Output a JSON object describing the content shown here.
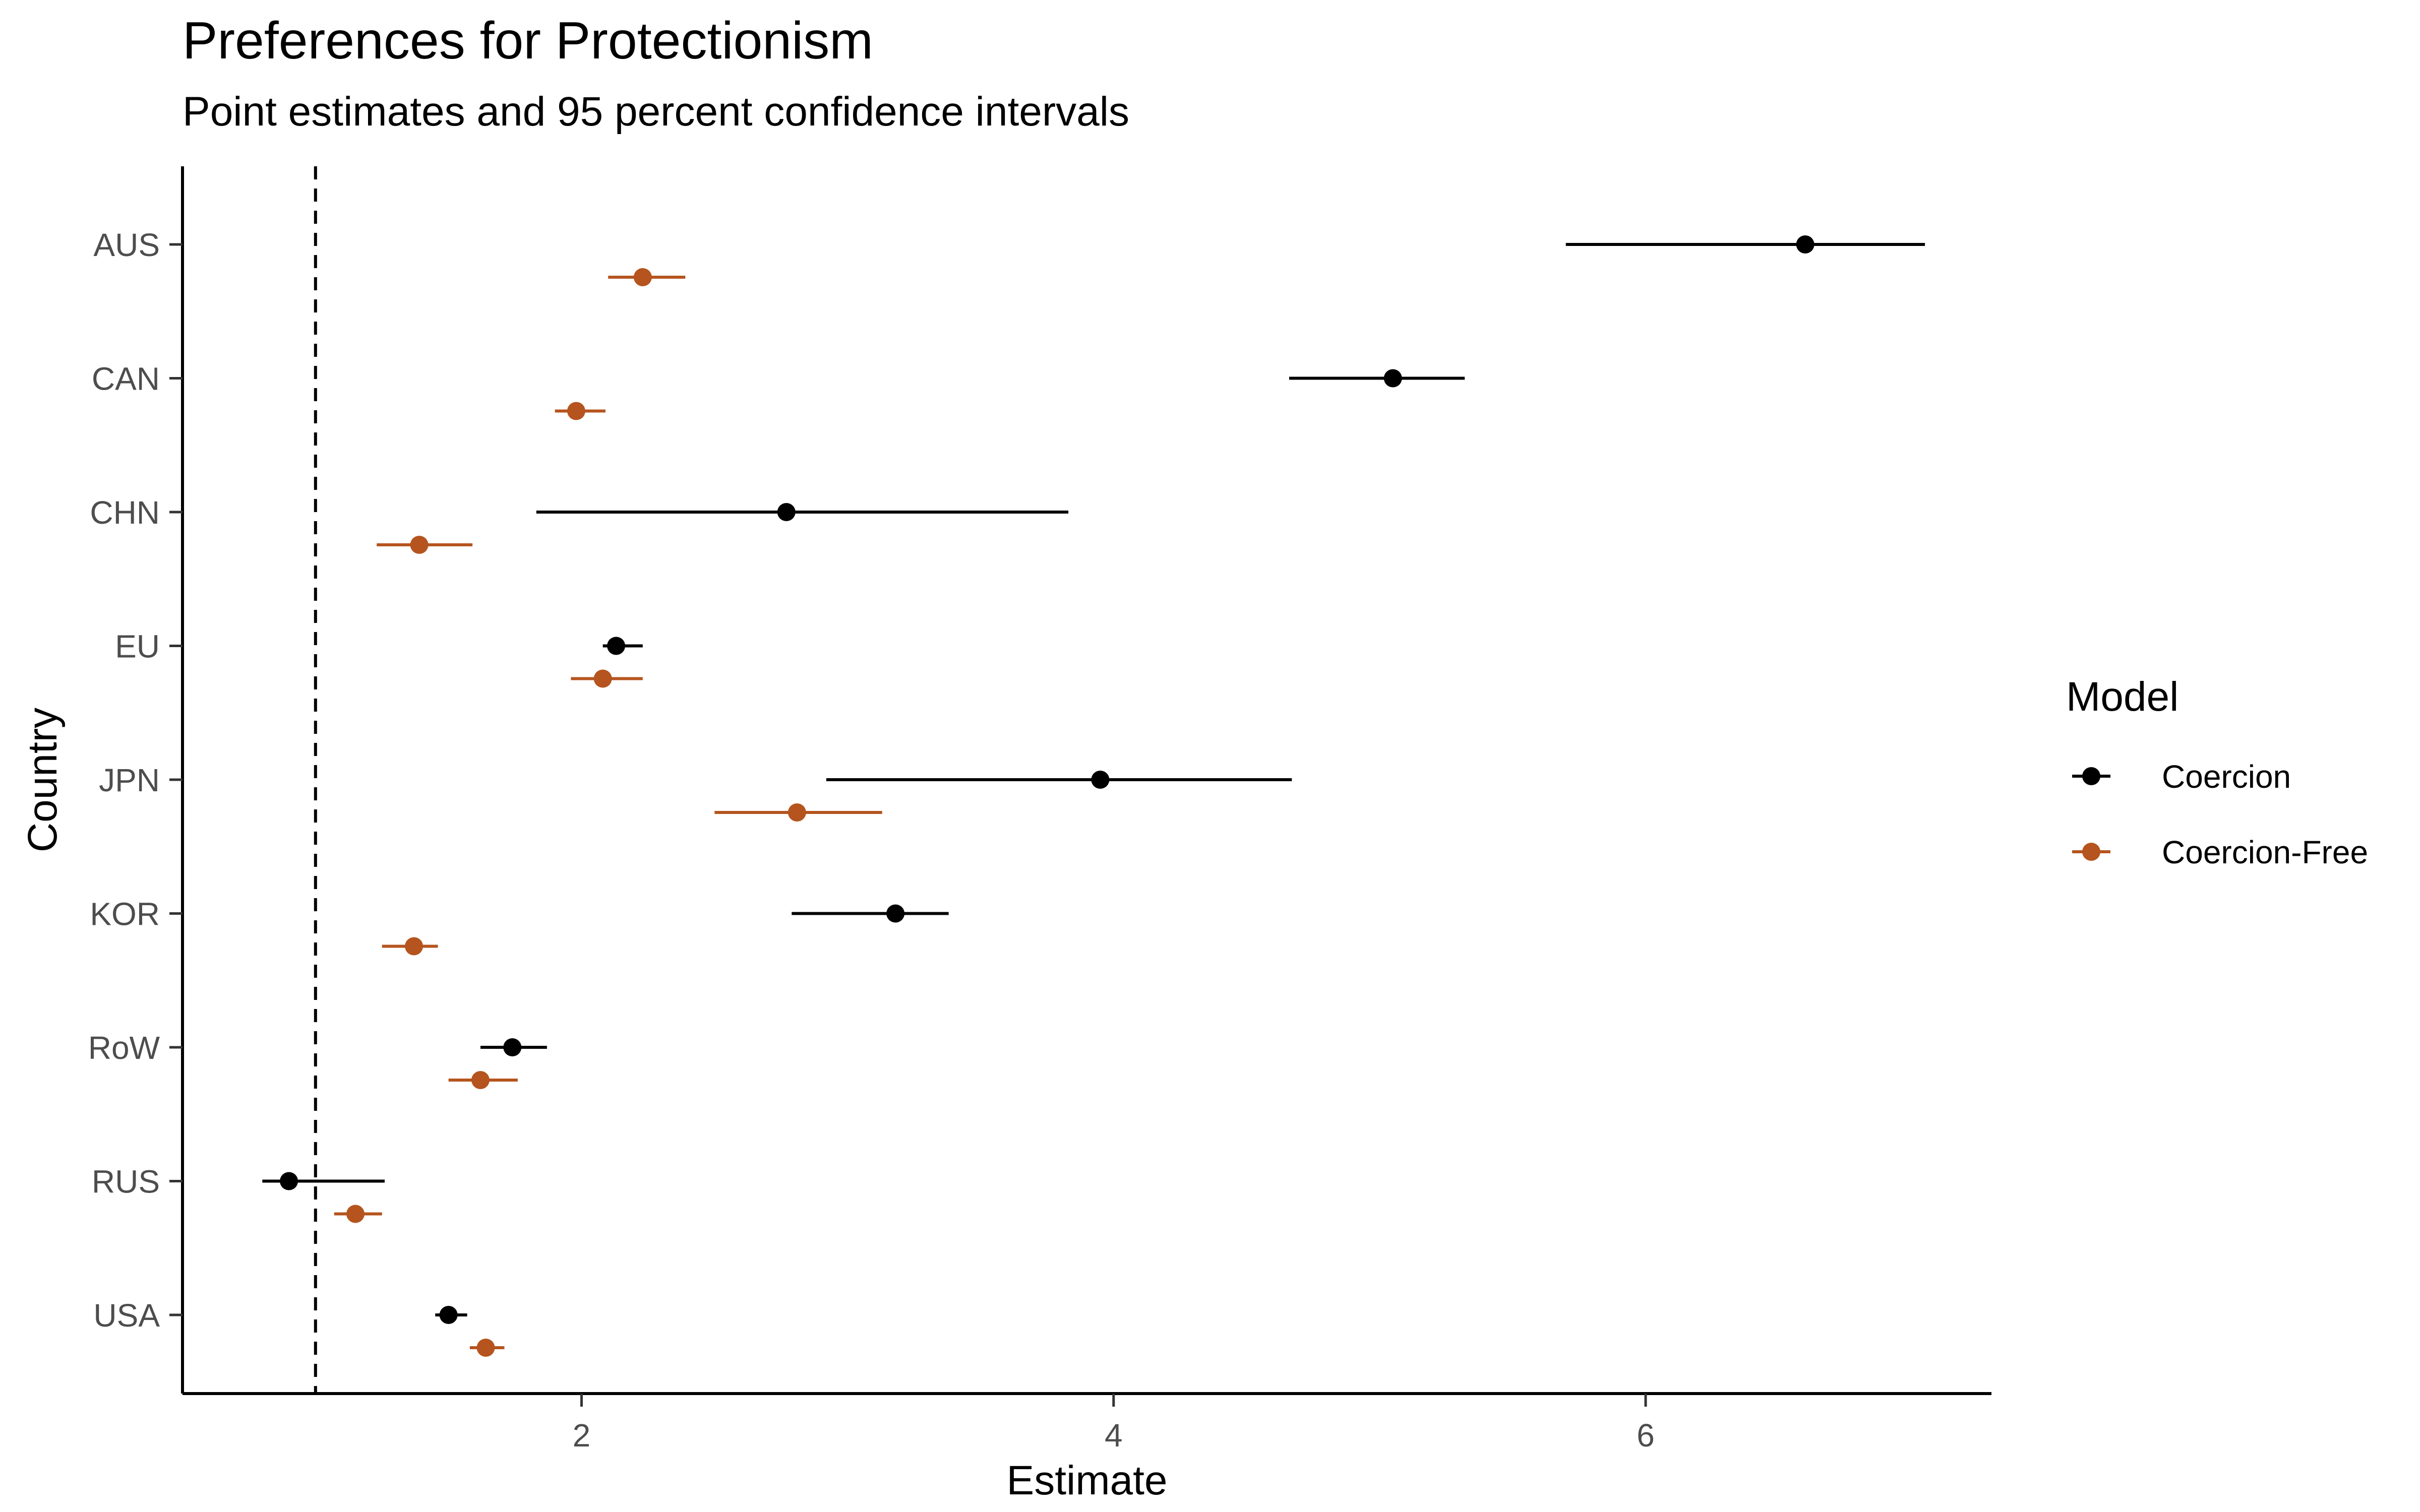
{
  "chart_data": {
    "type": "scatter",
    "title": "Preferences for Protectionism",
    "subtitle": "Point estimates and 95 percent confidence intervals",
    "xlabel": "Estimate",
    "ylabel": "Country",
    "xlim": [
      0.5,
      7.3
    ],
    "xticks": [
      2,
      4,
      6
    ],
    "reference_line": {
      "x": 1,
      "style": "dashed"
    },
    "categories": [
      "AUS",
      "CAN",
      "CHN",
      "EU",
      "JPN",
      "KOR",
      "RoW",
      "RUS",
      "USA"
    ],
    "grid": false,
    "legend": {
      "title": "Model",
      "position": "right"
    },
    "series": [
      {
        "name": "Coercion",
        "color": "#000000",
        "estimates": [
          6.6,
          5.05,
          2.77,
          2.13,
          3.95,
          3.18,
          1.74,
          0.9,
          1.5
        ],
        "ci_low": [
          5.7,
          4.66,
          1.83,
          2.08,
          2.92,
          2.79,
          1.62,
          0.8,
          1.45
        ],
        "ci_high": [
          7.05,
          5.32,
          3.83,
          2.23,
          4.67,
          3.38,
          1.87,
          1.26,
          1.57
        ]
      },
      {
        "name": "Coercion-Free",
        "color": "#B5541E",
        "estimates": [
          2.23,
          1.98,
          1.39,
          2.08,
          2.81,
          1.37,
          1.62,
          1.15,
          1.64
        ],
        "ci_low": [
          2.1,
          1.9,
          1.23,
          1.96,
          2.5,
          1.25,
          1.5,
          1.07,
          1.58
        ],
        "ci_high": [
          2.39,
          2.09,
          1.59,
          2.23,
          3.13,
          1.46,
          1.76,
          1.25,
          1.71
        ]
      }
    ]
  }
}
